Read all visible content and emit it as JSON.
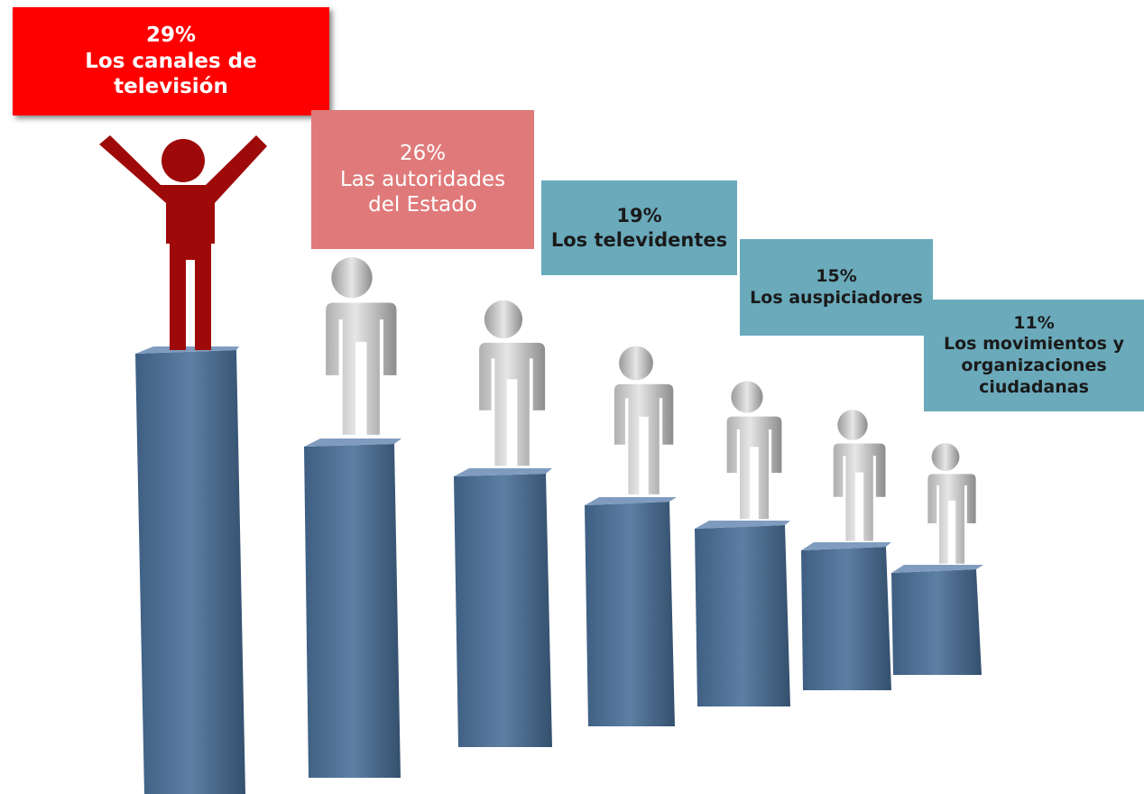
{
  "items": [
    {
      "percent": "29%",
      "label": "Los canales de televisión"
    },
    {
      "percent": "26%",
      "label": "Las autoridades del Estado"
    },
    {
      "percent": "19%",
      "label": "Los televidentes"
    },
    {
      "percent": "15%",
      "label": "Los auspiciadores"
    },
    {
      "percent": "11%",
      "label": "Los movimientos y organizaciones ciudadanas"
    }
  ]
}
